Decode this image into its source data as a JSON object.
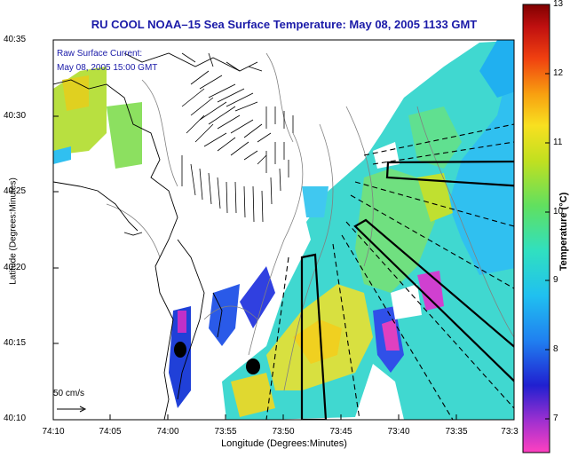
{
  "title": "RU COOL  NOAA–15  Sea Surface Temperature:  May 08, 2005 1133 GMT",
  "annotation": {
    "line1": "Raw Surface Current:",
    "line2": "May 08, 2005 15:00 GMT"
  },
  "axes": {
    "xlabel": "Longitude (Degrees:Minutes)",
    "ylabel": "Latitude (Degrees:Minutes)",
    "xticks": [
      "74:10",
      "74:05",
      "74:00",
      "73:55",
      "73:50",
      "73:45",
      "73:40",
      "73:35",
      "73:3"
    ],
    "yticks": [
      "40:35",
      "40:30",
      "40:25",
      "40:20",
      "40:15",
      "40:10"
    ]
  },
  "colorbar": {
    "label": "Temperature (°C)",
    "ticks": [
      "13",
      "12",
      "11",
      "10",
      "9",
      "8",
      "7"
    ],
    "range": [
      6.5,
      13
    ]
  },
  "scale_label": "50 cm/s",
  "colors": {
    "land": "#ffffff",
    "title": "#1a1aa8",
    "water_warm": "#f0d020",
    "water_mid": "#80e070",
    "water_cool": "#20a8f0",
    "water_cold": "#3040e0"
  }
}
